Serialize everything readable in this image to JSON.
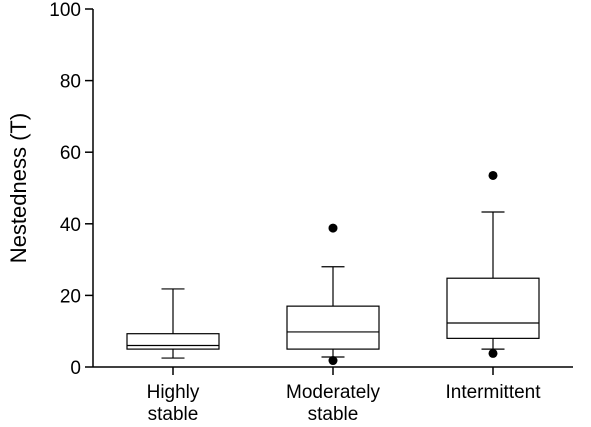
{
  "chart_data": {
    "type": "box",
    "ylabel": "Nestedness (T)",
    "ylim": [
      0,
      100
    ],
    "yticks": [
      0,
      20,
      40,
      60,
      80,
      100
    ],
    "grid": false,
    "categories": [
      {
        "lines": [
          "Highly",
          "stable"
        ]
      },
      {
        "lines": [
          "Moderately",
          "stable"
        ]
      },
      {
        "lines": [
          "Intermittent"
        ]
      }
    ],
    "boxes": [
      {
        "whisker_low": 2.5,
        "q1": 5.0,
        "median": 6.0,
        "q3": 9.3,
        "whisker_high": 21.8,
        "outliers": []
      },
      {
        "whisker_low": 2.8,
        "q1": 5.0,
        "median": 9.8,
        "q3": 17.0,
        "whisker_high": 28.0,
        "outliers": [
          1.8,
          38.8
        ]
      },
      {
        "whisker_low": 5.0,
        "q1": 8.0,
        "median": 12.3,
        "q3": 24.8,
        "whisker_high": 43.3,
        "outliers": [
          3.8,
          53.5
        ]
      }
    ]
  }
}
